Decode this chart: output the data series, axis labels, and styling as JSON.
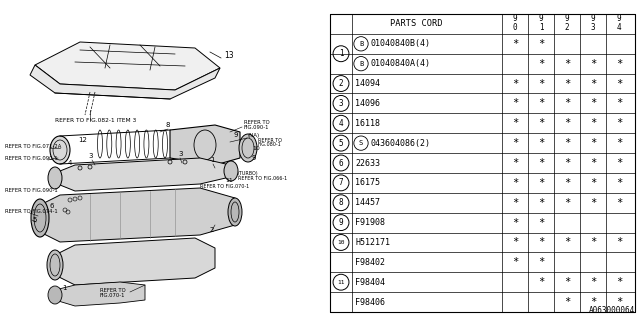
{
  "bg_color": "#ffffff",
  "rows": [
    {
      "num": "1",
      "prefix": "B",
      "code": "01040840B(4)",
      "stars": [
        1,
        1,
        0,
        0,
        0
      ]
    },
    {
      "num": "1",
      "prefix": "B",
      "code": "01040840A(4)",
      "stars": [
        0,
        1,
        1,
        1,
        1
      ]
    },
    {
      "num": "2",
      "prefix": "",
      "code": "14094",
      "stars": [
        1,
        1,
        1,
        1,
        1
      ]
    },
    {
      "num": "3",
      "prefix": "",
      "code": "14096",
      "stars": [
        1,
        1,
        1,
        1,
        1
      ]
    },
    {
      "num": "4",
      "prefix": "",
      "code": "16118",
      "stars": [
        1,
        1,
        1,
        1,
        1
      ]
    },
    {
      "num": "5",
      "prefix": "S",
      "code": "043604086(2)",
      "stars": [
        1,
        1,
        1,
        1,
        1
      ]
    },
    {
      "num": "6",
      "prefix": "",
      "code": "22633",
      "stars": [
        1,
        1,
        1,
        1,
        1
      ]
    },
    {
      "num": "7",
      "prefix": "",
      "code": "16175",
      "stars": [
        1,
        1,
        1,
        1,
        1
      ]
    },
    {
      "num": "8",
      "prefix": "",
      "code": "14457",
      "stars": [
        1,
        1,
        1,
        1,
        1
      ]
    },
    {
      "num": "9",
      "prefix": "",
      "code": "F91908",
      "stars": [
        1,
        1,
        0,
        0,
        0
      ]
    },
    {
      "num": "10",
      "prefix": "",
      "code": "H512171",
      "stars": [
        1,
        1,
        1,
        1,
        1
      ]
    },
    {
      "num": "",
      "prefix": "",
      "code": "F98402",
      "stars": [
        1,
        1,
        0,
        0,
        0
      ]
    },
    {
      "num": "11",
      "prefix": "",
      "code": "F98404",
      "stars": [
        0,
        1,
        1,
        1,
        1
      ]
    },
    {
      "num": "",
      "prefix": "",
      "code": "F98406",
      "stars": [
        0,
        0,
        1,
        1,
        1
      ]
    }
  ],
  "watermark": "A063000064"
}
